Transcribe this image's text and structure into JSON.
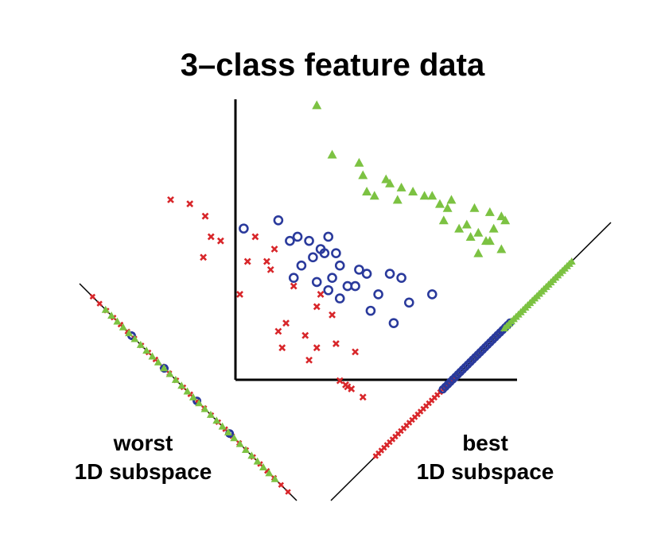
{
  "title": "3–class feature data",
  "worst_label": {
    "line1": "worst",
    "line2": "1D subspace"
  },
  "best_label": {
    "line1": "best",
    "line2": "1D subspace"
  },
  "colors": {
    "red": "#d8262a",
    "blue": "#2a3a9c",
    "green": "#7cc242",
    "axis": "#000000"
  },
  "chart_data": {
    "type": "scatter",
    "series": [
      {
        "marker": "x",
        "color": "#d8262a",
        "points": [
          [
            -16,
            90
          ],
          [
            -6,
            88
          ],
          [
            2,
            82
          ],
          [
            5,
            72
          ],
          [
            10,
            70
          ],
          [
            28,
            72
          ],
          [
            24,
            60
          ],
          [
            20,
            44
          ],
          [
            36,
            56
          ],
          [
            48,
            48
          ],
          [
            54,
            24
          ],
          [
            40,
            26
          ],
          [
            42,
            18
          ],
          [
            56,
            12
          ],
          [
            60,
            18
          ],
          [
            62,
            44
          ],
          [
            70,
            20
          ],
          [
            80,
            16
          ],
          [
            44,
            30
          ],
          [
            60,
            38
          ],
          [
            68,
            34
          ],
          [
            72,
            2
          ],
          [
            75,
            0
          ],
          [
            78,
            -2
          ],
          [
            76,
            -1
          ],
          [
            84,
            -6
          ],
          [
            1,
            62
          ],
          [
            34,
            60
          ],
          [
            38,
            66
          ]
        ]
      },
      {
        "marker": "o",
        "color": "#2a3a9c",
        "points": [
          [
            22,
            76
          ],
          [
            40,
            80
          ],
          [
            50,
            72
          ],
          [
            56,
            70
          ],
          [
            58,
            62
          ],
          [
            62,
            66
          ],
          [
            66,
            72
          ],
          [
            70,
            64
          ],
          [
            46,
            70
          ],
          [
            64,
            64
          ],
          [
            72,
            58
          ],
          [
            68,
            52
          ],
          [
            82,
            56
          ],
          [
            52,
            58
          ],
          [
            48,
            52
          ],
          [
            60,
            50
          ],
          [
            66,
            46
          ],
          [
            72,
            42
          ],
          [
            76,
            48
          ],
          [
            80,
            48
          ],
          [
            86,
            54
          ],
          [
            98,
            54
          ],
          [
            104,
            52
          ],
          [
            92,
            44
          ],
          [
            88,
            36
          ],
          [
            100,
            30
          ],
          [
            108,
            40
          ],
          [
            120,
            44
          ]
        ]
      },
      {
        "marker": "triangle",
        "color": "#7cc242",
        "points": [
          [
            60,
            136
          ],
          [
            68,
            112
          ],
          [
            82,
            108
          ],
          [
            84,
            102
          ],
          [
            90,
            92
          ],
          [
            86,
            94
          ],
          [
            98,
            98
          ],
          [
            104,
            96
          ],
          [
            110,
            94
          ],
          [
            116,
            92
          ],
          [
            120,
            92
          ],
          [
            124,
            88
          ],
          [
            128,
            86
          ],
          [
            130,
            90
          ],
          [
            126,
            80
          ],
          [
            134,
            76
          ],
          [
            138,
            78
          ],
          [
            140,
            72
          ],
          [
            144,
            74
          ],
          [
            150,
            70
          ],
          [
            152,
            76
          ],
          [
            150,
            84
          ],
          [
            156,
            82
          ],
          [
            144,
            64
          ],
          [
            158,
            80
          ],
          [
            142,
            86
          ],
          [
            148,
            70
          ],
          [
            96,
            100
          ],
          [
            102,
            90
          ],
          [
            156,
            66
          ]
        ]
      }
    ],
    "xlim": [
      -22,
      160
    ],
    "ylim": [
      -8,
      140
    ]
  }
}
